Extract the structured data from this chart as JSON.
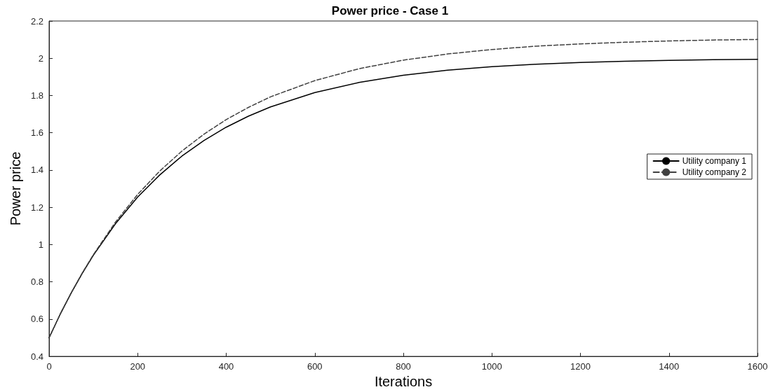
{
  "chart_data": {
    "type": "line",
    "title": "Power price - Case 1",
    "xlabel": "Iterations",
    "ylabel": "Power price",
    "xlim": [
      0,
      1600
    ],
    "xticks": [
      0,
      200,
      400,
      600,
      800,
      1000,
      1200,
      1400,
      1600
    ],
    "ylim": [
      0.4,
      2.2
    ],
    "yticks": [
      0.4,
      0.6,
      0.8,
      1,
      1.2,
      1.4,
      1.6,
      1.8,
      2,
      2.2
    ],
    "x": [
      0,
      25,
      50,
      75,
      100,
      150,
      200,
      250,
      300,
      350,
      400,
      450,
      500,
      600,
      700,
      800,
      900,
      1000,
      1100,
      1200,
      1300,
      1400,
      1500,
      1600
    ],
    "series": [
      {
        "name": "Utility company 1",
        "color": "#000000",
        "line_style": "solid",
        "values": [
          0.5,
          0.626,
          0.741,
          0.846,
          0.943,
          1.112,
          1.255,
          1.374,
          1.475,
          1.559,
          1.63,
          1.689,
          1.739,
          1.816,
          1.87,
          1.909,
          1.936,
          1.955,
          1.968,
          1.977,
          1.984,
          1.989,
          1.992,
          1.994
        ]
      },
      {
        "name": "Utility company 2",
        "color": "#404040",
        "line_style": "dashed",
        "values": [
          0.5,
          0.626,
          0.741,
          0.848,
          0.946,
          1.121,
          1.269,
          1.395,
          1.502,
          1.593,
          1.671,
          1.736,
          1.793,
          1.88,
          1.944,
          1.99,
          2.023,
          2.047,
          2.065,
          2.077,
          2.086,
          2.093,
          2.098,
          2.101
        ]
      }
    ],
    "legend": "right",
    "grid": false,
    "marker": "none"
  }
}
